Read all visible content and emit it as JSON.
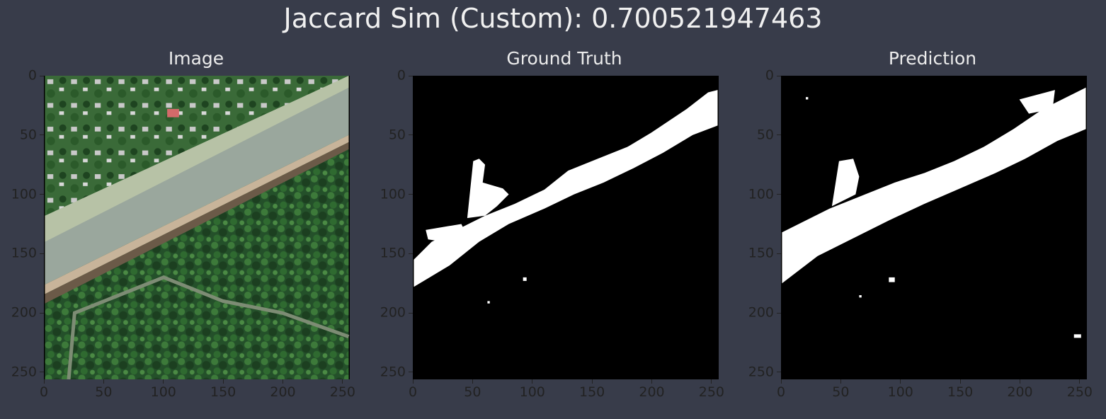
{
  "figure": {
    "suptitle": "Jaccard Sim (Custom): 0.700521947463",
    "panels": [
      {
        "title": "Image",
        "kind": "aerial-photo"
      },
      {
        "title": "Ground Truth",
        "kind": "mask"
      },
      {
        "title": "Prediction",
        "kind": "mask"
      }
    ],
    "axis_ticks": {
      "x": [
        "0",
        "50",
        "100",
        "150",
        "200",
        "250"
      ],
      "y": [
        "0",
        "50",
        "100",
        "150",
        "200",
        "250"
      ]
    },
    "colors": {
      "background": "#383c4a",
      "mask_fg": "#ffffff",
      "mask_bg": "#000000",
      "road": "#9aa79d",
      "forest": "#234a26"
    }
  }
}
